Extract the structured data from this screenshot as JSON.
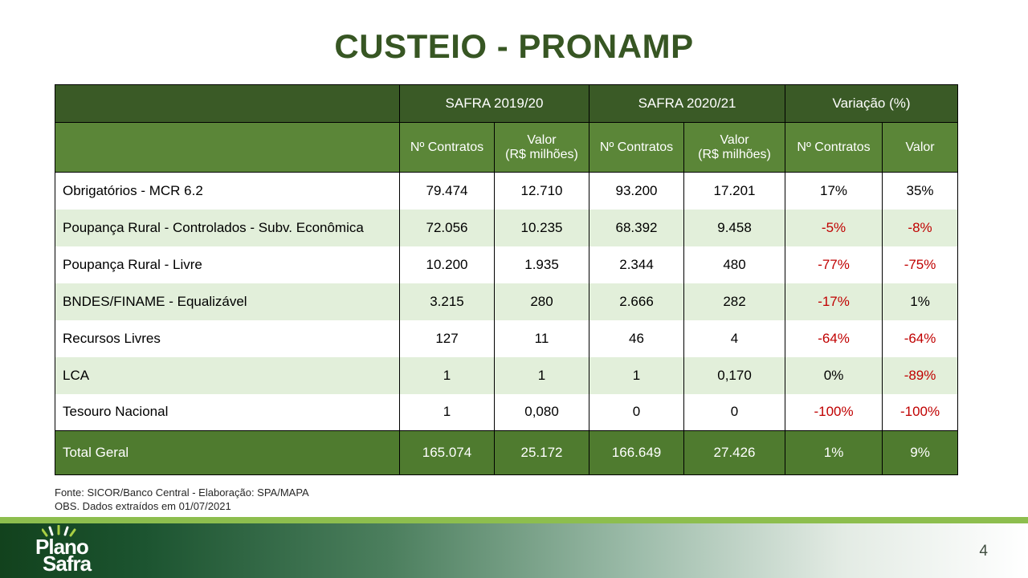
{
  "slide": {
    "title": "CUSTEIO - PRONAMP",
    "page_number": "4",
    "footnote_line1": "Fonte: SICOR/Banco Central - Elaboração: SPA/MAPA",
    "footnote_line2": "OBS. Dados extraídos em 01/07/2021",
    "logo": {
      "word1": "Plano",
      "word2": "Safra"
    }
  },
  "table": {
    "groups": [
      "SAFRA 2019/20",
      "SAFRA 2020/21",
      "Variação (%)"
    ],
    "sub_headers": [
      "Nº Contratos",
      "Valor\n(R$ milhões)",
      "Nº Contratos",
      "Valor\n(R$ milhões)",
      "Nº Contratos",
      "Valor"
    ],
    "rows": [
      [
        "Obrigatórios - MCR 6.2",
        "79.474",
        "12.710",
        "93.200",
        "17.201",
        "17%",
        "35%"
      ],
      [
        "Poupança Rural - Controlados - Subv. Econômica",
        "72.056",
        "10.235",
        "68.392",
        "9.458",
        "-5%",
        "-8%"
      ],
      [
        "Poupança Rural - Livre",
        "10.200",
        "1.935",
        "2.344",
        "480",
        "-77%",
        "-75%"
      ],
      [
        "BNDES/FINAME - Equalizável",
        "3.215",
        "280",
        "2.666",
        "282",
        "-17%",
        "1%"
      ],
      [
        "Recursos Livres",
        "127",
        "11",
        "46",
        "4",
        "-64%",
        "-64%"
      ],
      [
        "LCA",
        "1",
        "1",
        "1",
        "0,170",
        "0%",
        "-89%"
      ],
      [
        "Tesouro Nacional",
        "1",
        "0,080",
        "0",
        "0",
        "-100%",
        "-100%"
      ]
    ],
    "total_row": [
      "Total Geral",
      "165.074",
      "25.172",
      "166.649",
      "27.426",
      "1%",
      "9%"
    ]
  },
  "colors": {
    "title_green": "#375623",
    "header_dark_green": "#3a5a26",
    "header_medium_green": "#5b8638",
    "total_row_green": "#4f7b2f",
    "row_stripe_light_green": "#e2efda",
    "negative_value_red": "#c00000",
    "footer_accent_green": "#8dbe4e",
    "footer_gradient_start": "#12421d"
  }
}
